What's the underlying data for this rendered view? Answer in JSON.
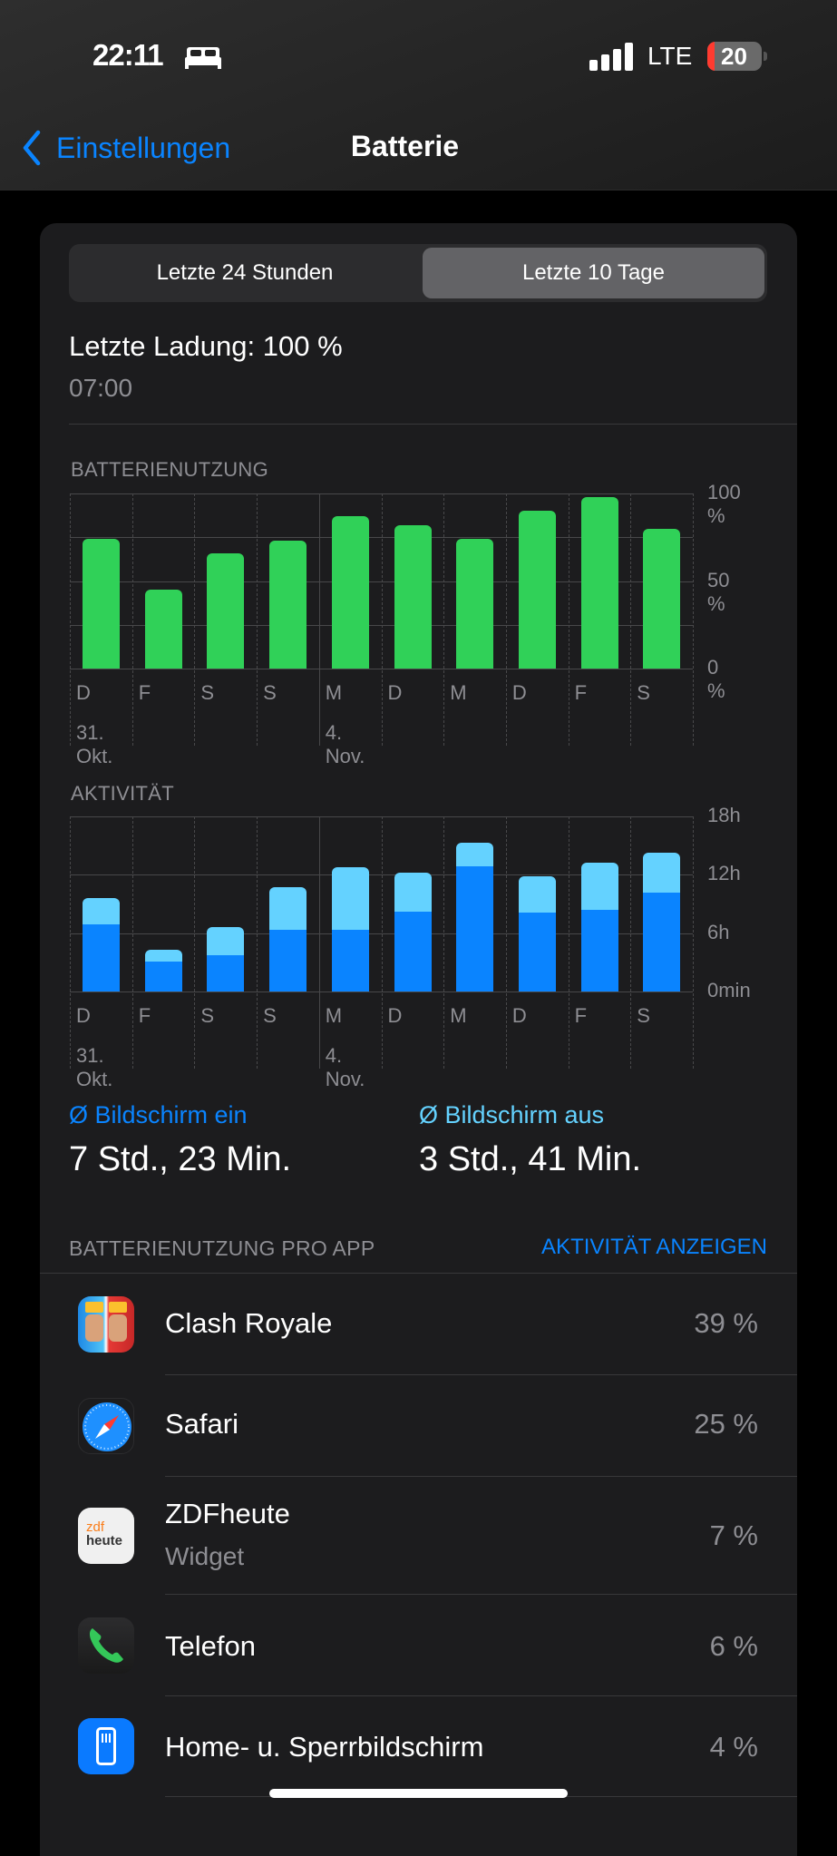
{
  "status_bar": {
    "time": "22:11",
    "network": "LTE",
    "battery_level": "20",
    "icons": [
      "bed-icon",
      "signal-icon",
      "battery-icon"
    ]
  },
  "nav": {
    "back_label": "Einstellungen",
    "title": "Batterie"
  },
  "segments": [
    {
      "label": "Letzte 24 Stunden",
      "selected": false
    },
    {
      "label": "Letzte 10 Tage",
      "selected": true
    }
  ],
  "last_charge": {
    "label": "Letzte Ladung: 100 %",
    "time": "07:00"
  },
  "colors": {
    "accent": "#0a84ff",
    "battery_bar": "#30d158",
    "screen_on": "#0a84ff",
    "screen_off": "#64d2ff",
    "low_battery": "#ff3b30"
  },
  "chart_data": [
    {
      "type": "bar",
      "title": "BATTERIENUTZUNG",
      "categories": [
        "D",
        "F",
        "S",
        "S",
        "M",
        "D",
        "M",
        "D",
        "F",
        "S"
      ],
      "date_labels": [
        {
          "index": 0,
          "label": "31. Okt."
        },
        {
          "index": 4,
          "label": "4. Nov."
        }
      ],
      "values": [
        74,
        45,
        66,
        73,
        87,
        82,
        74,
        90,
        98,
        80
      ],
      "yticks": [
        "100 %",
        "50 %",
        "0 %"
      ],
      "ylim": [
        0,
        100
      ],
      "unit": "%"
    },
    {
      "type": "bar",
      "stacked": true,
      "title": "AKTIVITÄT",
      "categories": [
        "D",
        "F",
        "S",
        "S",
        "M",
        "D",
        "M",
        "D",
        "F",
        "S"
      ],
      "date_labels": [
        {
          "index": 0,
          "label": "31. Okt."
        },
        {
          "index": 4,
          "label": "4. Nov."
        }
      ],
      "series": [
        {
          "name": "Bildschirm ein",
          "values": [
            6.9,
            3.1,
            3.7,
            6.3,
            6.3,
            8.2,
            12.9,
            8.1,
            8.4,
            10.2
          ]
        },
        {
          "name": "Bildschirm aus",
          "values": [
            2.7,
            1.2,
            2.9,
            4.4,
            6.5,
            4.0,
            2.4,
            3.7,
            4.8,
            4.1
          ]
        }
      ],
      "yticks": [
        "18h",
        "12h",
        "6h",
        "0min"
      ],
      "ylim": [
        0,
        18
      ],
      "unit": "h"
    }
  ],
  "averages": [
    {
      "label": "Ø Bildschirm ein",
      "value": "7 Std., 23 Min."
    },
    {
      "label": "Ø Bildschirm aus",
      "value": "3 Std., 41 Min."
    }
  ],
  "apps_section": {
    "title": "BATTERIENUTZUNG PRO APP",
    "action": "AKTIVITÄT ANZEIGEN"
  },
  "apps": [
    {
      "name": "Clash Royale",
      "percent": "39 %"
    },
    {
      "name": "Safari",
      "percent": "25 %"
    },
    {
      "name": "ZDFheute",
      "sub": "Widget",
      "percent": "7 %",
      "icon_text": "zdf heute"
    },
    {
      "name": "Telefon",
      "percent": "6 %"
    },
    {
      "name": "Home- u. Sperrbildschirm",
      "percent": "4 %"
    }
  ]
}
